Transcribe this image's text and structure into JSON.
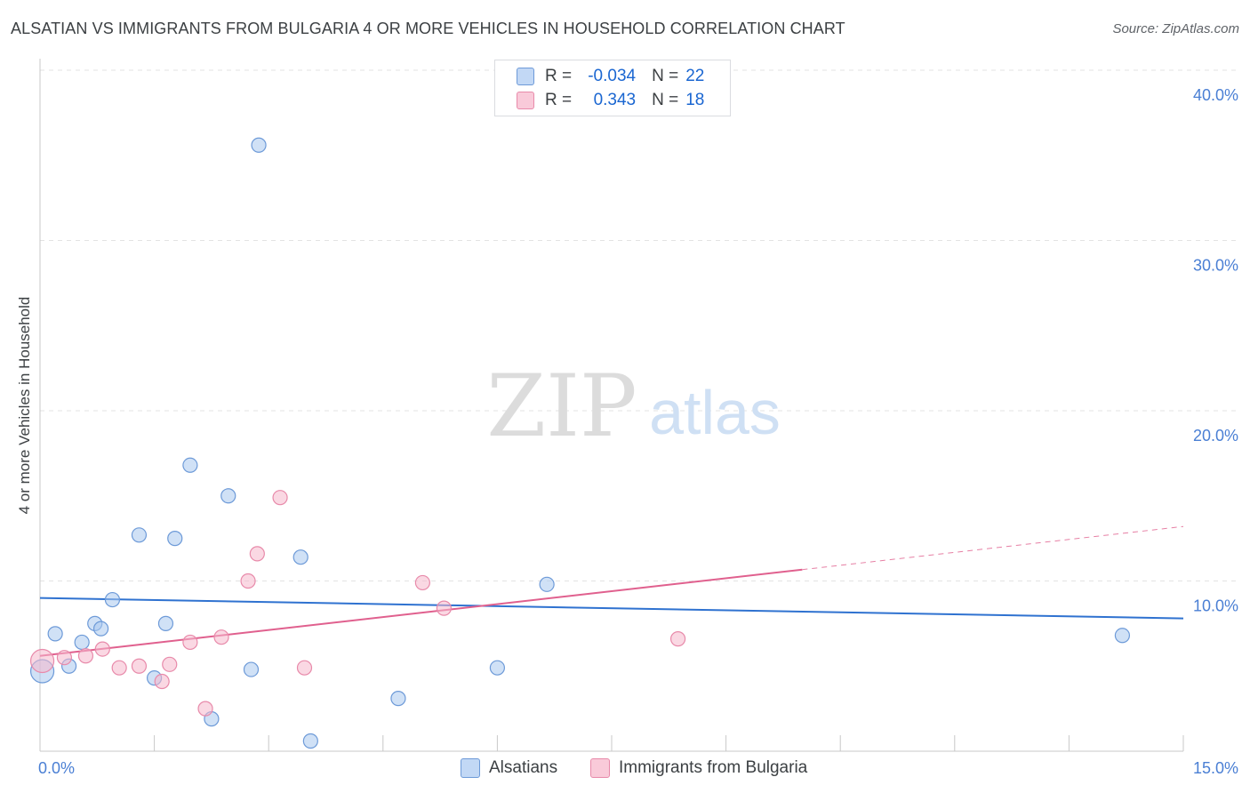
{
  "title": "ALSATIAN VS IMMIGRANTS FROM BULGARIA 4 OR MORE VEHICLES IN HOUSEHOLD CORRELATION CHART",
  "source": "Source: ZipAtlas.com",
  "watermark": {
    "zip": "ZIP",
    "atlas": "atlas"
  },
  "legend": {
    "r_label": "R =",
    "n_label": "N =",
    "rows": [
      {
        "r": "-0.034",
        "n": "22"
      },
      {
        "r": "0.343",
        "n": "18"
      }
    ]
  },
  "colors": {
    "blue_fill": "#aac8ee",
    "blue_stroke": "#6d9ad8",
    "blue_line": "#2f72d0",
    "pink_fill": "#f5b8cc",
    "pink_stroke": "#e88aaa",
    "pink_line": "#e0608e",
    "tick_text": "#4a7fd4",
    "grid": "#e3e3e3"
  },
  "chart_data": {
    "type": "scatter",
    "title": "ALSATIAN VS IMMIGRANTS FROM BULGARIA 4 OR MORE VEHICLES IN HOUSEHOLD CORRELATION CHART",
    "xlabel": "",
    "ylabel": "4 or more Vehicles in Household",
    "xlim": [
      0,
      15
    ],
    "ylim": [
      0,
      40
    ],
    "x_tick_labels": [
      "0.0%",
      "15.0%"
    ],
    "y_ticks": [
      10,
      20,
      30,
      40
    ],
    "y_tick_labels": [
      "10.0%",
      "20.0%",
      "30.0%",
      "40.0%"
    ],
    "series": [
      {
        "name": "Alsatians",
        "r": -0.034,
        "n": 22,
        "points": [
          {
            "x": 0.03,
            "y": 4.7
          },
          {
            "x": 0.2,
            "y": 6.9
          },
          {
            "x": 0.38,
            "y": 5.0
          },
          {
            "x": 0.55,
            "y": 6.4
          },
          {
            "x": 0.72,
            "y": 7.5
          },
          {
            "x": 0.8,
            "y": 7.2
          },
          {
            "x": 0.95,
            "y": 8.9
          },
          {
            "x": 1.3,
            "y": 12.7
          },
          {
            "x": 1.5,
            "y": 4.3
          },
          {
            "x": 1.65,
            "y": 7.5
          },
          {
            "x": 1.77,
            "y": 12.5
          },
          {
            "x": 1.97,
            "y": 16.8
          },
          {
            "x": 2.25,
            "y": 1.9
          },
          {
            "x": 2.47,
            "y": 15.0
          },
          {
            "x": 2.77,
            "y": 4.8
          },
          {
            "x": 2.87,
            "y": 35.6
          },
          {
            "x": 3.42,
            "y": 11.4
          },
          {
            "x": 3.55,
            "y": 0.6
          },
          {
            "x": 4.7,
            "y": 3.1
          },
          {
            "x": 6.0,
            "y": 4.9
          },
          {
            "x": 6.65,
            "y": 9.8
          },
          {
            "x": 14.2,
            "y": 6.8
          }
        ],
        "trend": {
          "x": [
            0,
            15
          ],
          "y": [
            9.0,
            7.8
          ],
          "dashed_from_x": null
        }
      },
      {
        "name": "Immigrants from Bulgaria",
        "r": 0.343,
        "n": 18,
        "points": [
          {
            "x": 0.03,
            "y": 5.3
          },
          {
            "x": 0.32,
            "y": 5.5
          },
          {
            "x": 0.6,
            "y": 5.6
          },
          {
            "x": 0.82,
            "y": 6.0
          },
          {
            "x": 1.04,
            "y": 4.9
          },
          {
            "x": 1.3,
            "y": 5.0
          },
          {
            "x": 1.6,
            "y": 4.1
          },
          {
            "x": 1.7,
            "y": 5.1
          },
          {
            "x": 1.97,
            "y": 6.4
          },
          {
            "x": 2.17,
            "y": 2.5
          },
          {
            "x": 2.38,
            "y": 6.7
          },
          {
            "x": 2.73,
            "y": 10.0
          },
          {
            "x": 2.85,
            "y": 11.6
          },
          {
            "x": 3.15,
            "y": 14.9
          },
          {
            "x": 3.47,
            "y": 4.9
          },
          {
            "x": 5.02,
            "y": 9.9
          },
          {
            "x": 5.3,
            "y": 8.4
          },
          {
            "x": 8.37,
            "y": 6.6
          }
        ],
        "trend": {
          "x": [
            0,
            15
          ],
          "y": [
            5.6,
            13.2
          ],
          "dashed_from_x": 10.0
        }
      }
    ]
  },
  "bottom_legend": [
    {
      "label": "Alsatians"
    },
    {
      "label": "Immigrants from Bulgaria"
    }
  ]
}
